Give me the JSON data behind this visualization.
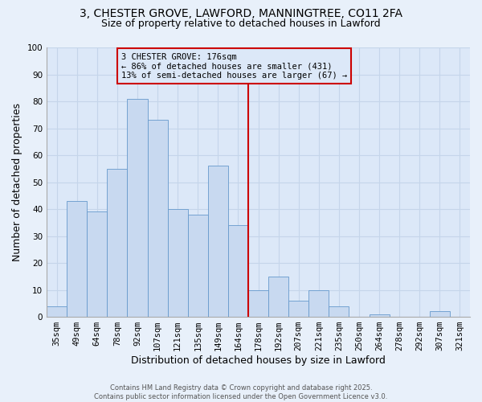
{
  "title": "3, CHESTER GROVE, LAWFORD, MANNINGTREE, CO11 2FA",
  "subtitle": "Size of property relative to detached houses in Lawford",
  "xlabel": "Distribution of detached houses by size in Lawford",
  "ylabel": "Number of detached properties",
  "bar_labels": [
    "35sqm",
    "49sqm",
    "64sqm",
    "78sqm",
    "92sqm",
    "107sqm",
    "121sqm",
    "135sqm",
    "149sqm",
    "164sqm",
    "178sqm",
    "192sqm",
    "207sqm",
    "221sqm",
    "235sqm",
    "250sqm",
    "264sqm",
    "278sqm",
    "292sqm",
    "307sqm",
    "321sqm"
  ],
  "bar_values": [
    4,
    43,
    39,
    55,
    81,
    73,
    40,
    38,
    56,
    34,
    10,
    15,
    6,
    10,
    4,
    0,
    1,
    0,
    0,
    2,
    0
  ],
  "bar_color": "#c8d9f0",
  "bar_edge_color": "#6699cc",
  "vline_x_index": 10,
  "vline_color": "#cc0000",
  "annotation_title": "3 CHESTER GROVE: 176sqm",
  "annotation_line1": "← 86% of detached houses are smaller (431)",
  "annotation_line2": "13% of semi-detached houses are larger (67) →",
  "annotation_box_color": "#cc0000",
  "ylim": [
    0,
    100
  ],
  "yticks": [
    0,
    10,
    20,
    30,
    40,
    50,
    60,
    70,
    80,
    90,
    100
  ],
  "grid_color": "#c5d5ea",
  "background_color": "#e8f0fa",
  "plot_bg_color": "#dce8f8",
  "footer1": "Contains HM Land Registry data © Crown copyright and database right 2025.",
  "footer2": "Contains public sector information licensed under the Open Government Licence v3.0.",
  "title_fontsize": 10,
  "subtitle_fontsize": 9,
  "axis_label_fontsize": 9,
  "tick_fontsize": 7.5,
  "annotation_fontsize": 7.5,
  "fig_width": 6.0,
  "fig_height": 5.0
}
